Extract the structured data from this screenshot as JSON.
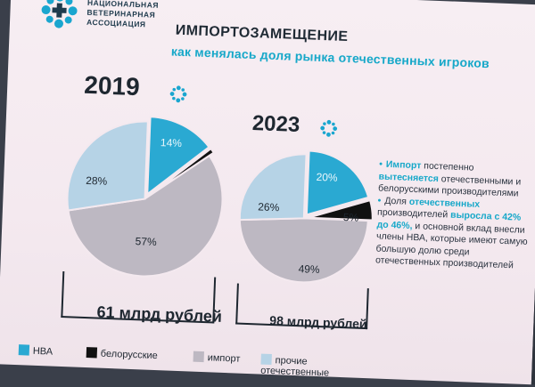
{
  "header": {
    "association": [
      "НАЦИОНАЛЬНАЯ",
      "ВЕТЕРИНАРНАЯ",
      "АССОЦИАЦИЯ"
    ],
    "title": "ИМПОРТОЗАМЕЩЕНИЕ",
    "subtitle": "как менялась доля рынка отечественных игроков"
  },
  "colors": {
    "nva": "#2aa9d2",
    "belarus": "#111111",
    "import": "#bdb8c2",
    "domestic": "#b6d3e6",
    "accent": "#17a8c9"
  },
  "charts": [
    {
      "year": "2019",
      "amount": "61 млрд рублей",
      "labels": [
        "14%",
        "",
        "57%",
        "28%"
      ],
      "shares": [
        14,
        1,
        57,
        28
      ]
    },
    {
      "year": "2023",
      "amount": "98 млрд рублей",
      "labels": [
        "20%",
        "5%",
        "49%",
        "26%"
      ],
      "shares": [
        20,
        5,
        49,
        26
      ]
    }
  ],
  "notes": {
    "p1_a": "Импорт",
    "p1_b": " постепенно ",
    "p1_c": "вытесняется",
    "p1_d": " отечественными и белорусскими производителями",
    "p2_a": "Доля ",
    "p2_b": "отечественных",
    "p2_c": " производителей ",
    "p2_d": "выросла с 42% до 46%,",
    "p2_e": " и основной вклад внесли члены НВА, которые имеют самую большую долю среди отечественных производителей"
  },
  "legend": {
    "nva": "НВА",
    "belarus": "белорусские",
    "import": "импорт",
    "domestic": "прочие отечественные"
  }
}
